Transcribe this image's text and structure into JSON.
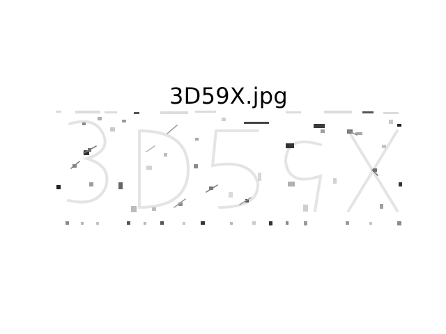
{
  "figure": {
    "title": "3D59X.jpg"
  },
  "image": {
    "description": "",
    "colors": {
      "background": "#ffffff",
      "ink": "#000000",
      "noise_dark": "#222222",
      "noise_mid": "#8a8a8a",
      "noise_light": "#d6d6d6"
    }
  }
}
